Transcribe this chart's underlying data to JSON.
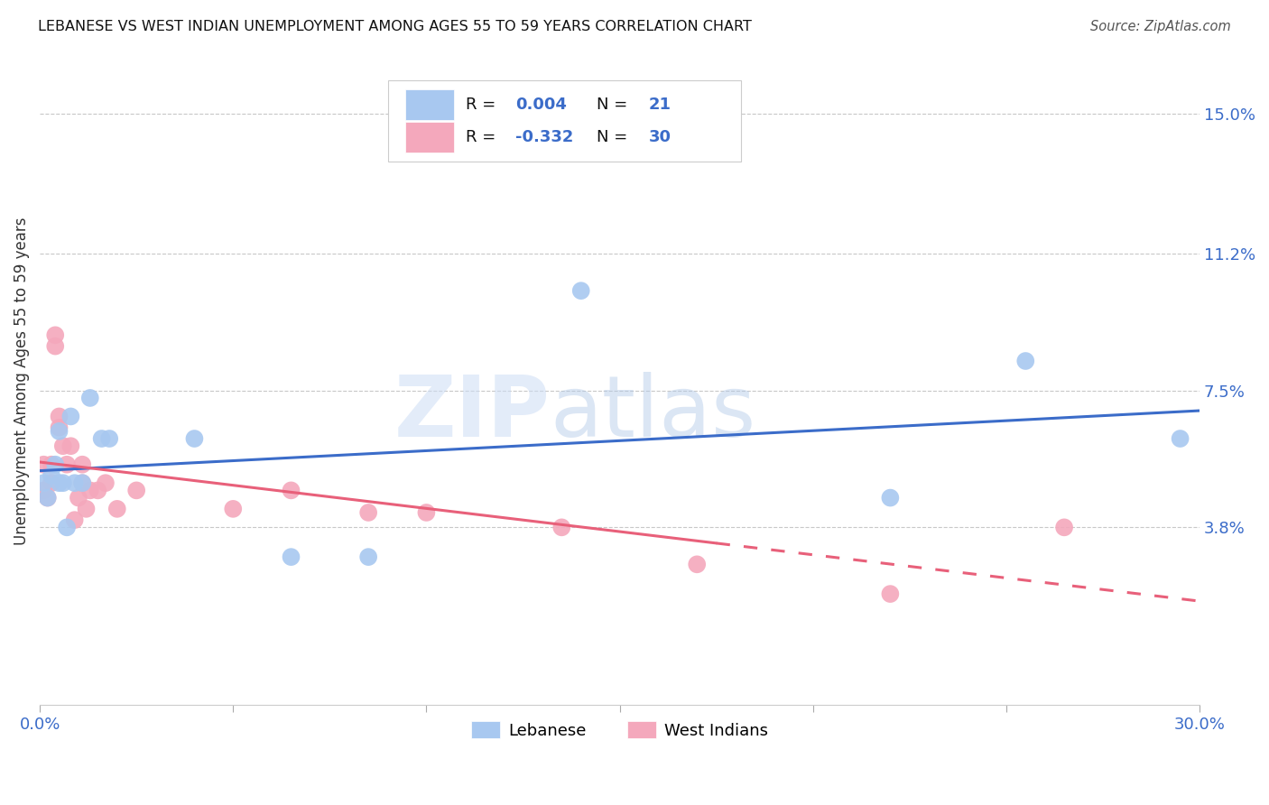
{
  "title": "LEBANESE VS WEST INDIAN UNEMPLOYMENT AMONG AGES 55 TO 59 YEARS CORRELATION CHART",
  "source": "Source: ZipAtlas.com",
  "ylabel_label": "Unemployment Among Ages 55 to 59 years",
  "xlim": [
    0.0,
    0.3
  ],
  "ylim": [
    -0.01,
    0.165
  ],
  "xticks": [
    0.0,
    0.05,
    0.1,
    0.15,
    0.2,
    0.25,
    0.3
  ],
  "xtick_labels": [
    "0.0%",
    "",
    "",
    "",
    "",
    "",
    "30.0%"
  ],
  "ytick_positions": [
    0.038,
    0.075,
    0.112,
    0.15
  ],
  "ytick_labels": [
    "3.8%",
    "7.5%",
    "11.2%",
    "15.0%"
  ],
  "background_color": "#ffffff",
  "grid_color": "#c8c8c8",
  "lebanese_color": "#a8c8f0",
  "west_indian_color": "#f4a8bc",
  "lebanese_line_color": "#3b6cc9",
  "west_indian_line_color": "#e8607a",
  "legend_R_lebanese": "R = ",
  "legend_R_lebanese_val": "0.004",
  "legend_N_lebanese": "N = ",
  "legend_N_lebanese_val": "21",
  "legend_R_west_indian": "R = ",
  "legend_R_west_indian_val": "-0.332",
  "legend_N_west_indian": "N = ",
  "legend_N_west_indian_val": "30",
  "watermark_zip": "ZIP",
  "watermark_atlas": "atlas",
  "lebanese_x": [
    0.001,
    0.002,
    0.003,
    0.004,
    0.005,
    0.005,
    0.006,
    0.007,
    0.008,
    0.009,
    0.011,
    0.013,
    0.016,
    0.018,
    0.04,
    0.065,
    0.085,
    0.14,
    0.22,
    0.255,
    0.295
  ],
  "lebanese_y": [
    0.05,
    0.046,
    0.052,
    0.055,
    0.05,
    0.064,
    0.05,
    0.038,
    0.068,
    0.05,
    0.05,
    0.073,
    0.062,
    0.062,
    0.062,
    0.03,
    0.03,
    0.102,
    0.046,
    0.083,
    0.062
  ],
  "west_indian_x": [
    0.001,
    0.001,
    0.002,
    0.003,
    0.003,
    0.004,
    0.004,
    0.005,
    0.005,
    0.006,
    0.007,
    0.008,
    0.009,
    0.01,
    0.011,
    0.011,
    0.012,
    0.013,
    0.015,
    0.017,
    0.02,
    0.025,
    0.05,
    0.065,
    0.085,
    0.1,
    0.135,
    0.17,
    0.22,
    0.265
  ],
  "west_indian_y": [
    0.048,
    0.055,
    0.046,
    0.05,
    0.055,
    0.09,
    0.087,
    0.065,
    0.068,
    0.06,
    0.055,
    0.06,
    0.04,
    0.046,
    0.05,
    0.055,
    0.043,
    0.048,
    0.048,
    0.05,
    0.043,
    0.048,
    0.043,
    0.048,
    0.042,
    0.042,
    0.038,
    0.028,
    0.02,
    0.038
  ],
  "leb_line_y0": 0.0505,
  "leb_line_y1": 0.0505,
  "wi_line_x0": 0.0,
  "wi_line_x_solid_end": 0.175,
  "wi_line_x1": 0.3,
  "wi_line_y0": 0.065,
  "wi_line_y_solid_end": 0.035,
  "wi_line_y1": 0.018
}
